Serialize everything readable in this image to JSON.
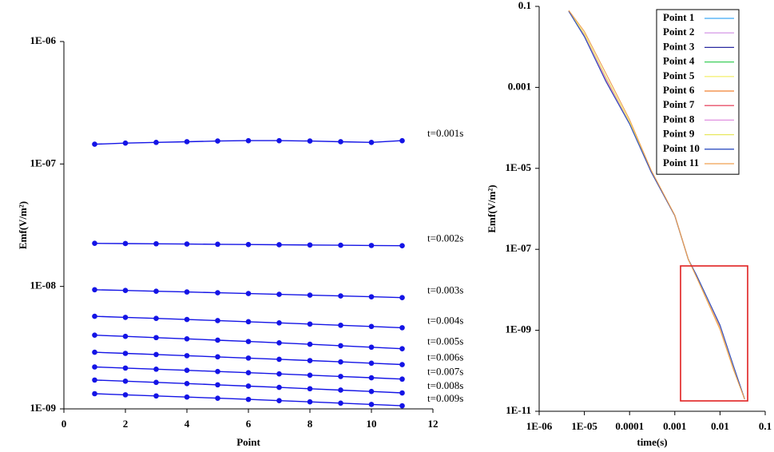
{
  "chart_data": [
    {
      "type": "line",
      "y_label": "Emf(V/m²)",
      "x_label": "Point",
      "ylog": true,
      "color": "#1414e6",
      "markers": true,
      "x": [
        1,
        2,
        3,
        4,
        5,
        6,
        7,
        8,
        9,
        10,
        11
      ],
      "xlim": [
        0,
        12
      ],
      "xticks": [
        0,
        2,
        4,
        6,
        8,
        10,
        12
      ],
      "ylim": [
        1e-09,
        1e-06
      ],
      "yticks": [
        {
          "value": 1e-09,
          "label": "1E-09"
        },
        {
          "value": 1e-08,
          "label": "1E-08"
        },
        {
          "value": 1e-07,
          "label": "1E-07"
        },
        {
          "value": 1e-06,
          "label": "1E-06"
        }
      ],
      "series": [
        {
          "name": "t=0.001s",
          "values": [
            1.45e-07,
            1.48e-07,
            1.5e-07,
            1.52e-07,
            1.54e-07,
            1.55e-07,
            1.55e-07,
            1.54e-07,
            1.52e-07,
            1.5e-07,
            1.55e-07
          ]
        },
        {
          "name": "t=0.002s",
          "values": [
            2.25e-08,
            2.24e-08,
            2.23e-08,
            2.22e-08,
            2.21e-08,
            2.2e-08,
            2.19e-08,
            2.18e-08,
            2.17e-08,
            2.16e-08,
            2.15e-08
          ]
        },
        {
          "name": "t=0.003s",
          "values": [
            9.4e-09,
            9.27e-09,
            9.14e-09,
            9.01e-09,
            8.88e-09,
            8.75e-09,
            8.62e-09,
            8.49e-09,
            8.36e-09,
            8.23e-09,
            8.1e-09
          ]
        },
        {
          "name": "t=0.004s",
          "values": [
            5.7e-09,
            5.59e-09,
            5.48e-09,
            5.37e-09,
            5.26e-09,
            5.15e-09,
            5.04e-09,
            4.93e-09,
            4.82e-09,
            4.71e-09,
            4.6e-09
          ]
        },
        {
          "name": "t=0.005s",
          "values": [
            4e-09,
            3.91e-09,
            3.82e-09,
            3.73e-09,
            3.64e-09,
            3.55e-09,
            3.46e-09,
            3.37e-09,
            3.28e-09,
            3.19e-09,
            3.1e-09
          ]
        },
        {
          "name": "t=0.006s",
          "values": [
            2.9e-09,
            2.84e-09,
            2.78e-09,
            2.72e-09,
            2.66e-09,
            2.6e-09,
            2.54e-09,
            2.48e-09,
            2.42e-09,
            2.36e-09,
            2.3e-09
          ]
        },
        {
          "name": "t=0.007s",
          "values": [
            2.2e-09,
            2.155e-09,
            2.11e-09,
            2.065e-09,
            2.02e-09,
            1.975e-09,
            1.93e-09,
            1.885e-09,
            1.84e-09,
            1.795e-09,
            1.75e-09
          ]
        },
        {
          "name": "t=0.008s",
          "values": [
            1.72e-09,
            1.683e-09,
            1.646e-09,
            1.609e-09,
            1.572e-09,
            1.535e-09,
            1.498e-09,
            1.461e-09,
            1.424e-09,
            1.387e-09,
            1.35e-09
          ]
        },
        {
          "name": "t=0.009s",
          "values": [
            1.33e-09,
            1.303e-09,
            1.276e-09,
            1.249e-09,
            1.222e-09,
            1.195e-09,
            1.168e-09,
            1.141e-09,
            1.114e-09,
            1.087e-09,
            1.06e-09
          ]
        }
      ]
    },
    {
      "type": "line",
      "y_label": "Emf(V/m²)",
      "x_label": "time(s)",
      "xlog": true,
      "ylog": true,
      "legend": "top-right",
      "x": [
        4.5e-06,
        1e-05,
        3e-05,
        0.0001,
        0.0003,
        0.001,
        0.002,
        0.003,
        0.01,
        0.02,
        0.035
      ],
      "xlim": [
        1e-06,
        0.1
      ],
      "xticks": [
        {
          "value": 1e-06,
          "label": "1E-06"
        },
        {
          "value": 1e-05,
          "label": "1E-05"
        },
        0.0001,
        0.001,
        0.01,
        0.1
      ],
      "ylim": [
        1e-11,
        0.1
      ],
      "yticks": [
        {
          "value": 1e-11,
          "label": "1E-11"
        },
        {
          "value": 1e-09,
          "label": "1E-09"
        },
        {
          "value": 1e-07,
          "label": "1E-07"
        },
        {
          "value": 1e-05,
          "label": "1E-05"
        },
        0.001,
        0.1
      ],
      "series": [
        {
          "name": "Point 1",
          "color": "#3fa9f5",
          "values": [
            0.076,
            0.019,
            0.0015,
            0.00013,
            8.3e-06,
            6.8e-07,
            5.6e-08,
            2.2e-08,
            1.2e-09,
            1.2e-10,
            2e-11
          ]
        },
        {
          "name": "Point 2",
          "color": "#d8a0e8",
          "values": [
            0.076,
            0.019,
            0.0015,
            0.00013,
            8.3e-06,
            6.8e-07,
            5.6e-08,
            2.25e-08,
            1.25e-09,
            1.2e-10,
            2e-11
          ]
        },
        {
          "name": "Point 3",
          "color": "#2a2aa0",
          "values": [
            0.076,
            0.018,
            0.0014,
            0.000125,
            8.2e-06,
            6.8e-07,
            5.6e-08,
            2.3e-08,
            1.3e-09,
            1.25e-10,
            2e-11
          ]
        },
        {
          "name": "Point 4",
          "color": "#3ccf5a",
          "values": [
            0.076,
            0.019,
            0.0015,
            0.00013,
            8.3e-06,
            6.8e-07,
            5.6e-08,
            2.2e-08,
            1.2e-09,
            1.2e-10,
            2e-11
          ]
        },
        {
          "name": "Point 5",
          "color": "#f5f07a",
          "values": [
            0.076,
            0.019,
            0.0015,
            0.00013,
            8.3e-06,
            6.8e-07,
            5.6e-08,
            2.2e-08,
            1.2e-09,
            1.2e-10,
            2e-11
          ]
        },
        {
          "name": "Point 6",
          "color": "#f08030",
          "values": [
            0.076,
            0.019,
            0.0015,
            0.00013,
            8.3e-06,
            6.8e-07,
            5.6e-08,
            2.2e-08,
            1.2e-09,
            1.2e-10,
            2e-11
          ]
        },
        {
          "name": "Point 7",
          "color": "#e8506a",
          "values": [
            0.076,
            0.02,
            0.0016,
            0.000135,
            8.4e-06,
            6.8e-07,
            5.6e-08,
            2.2e-08,
            1.15e-09,
            1.15e-10,
            2e-11
          ]
        },
        {
          "name": "Point 8",
          "color": "#e090e0",
          "values": [
            0.076,
            0.02,
            0.0016,
            0.000135,
            8.4e-06,
            6.8e-07,
            5.6e-08,
            2.2e-08,
            1.15e-09,
            1.15e-10,
            2e-11
          ]
        },
        {
          "name": "Point 9",
          "color": "#e8e860",
          "values": [
            0.076,
            0.021,
            0.0018,
            0.00014,
            8.5e-06,
            6.8e-07,
            5.6e-08,
            2.15e-08,
            1.1e-09,
            1.1e-10,
            2e-11
          ]
        },
        {
          "name": "Point 10",
          "color": "#3050c0",
          "values": [
            0.076,
            0.018,
            0.0014,
            0.000125,
            8.2e-06,
            6.8e-07,
            5.6e-08,
            2.35e-08,
            1.35e-09,
            1.3e-10,
            2e-11
          ]
        },
        {
          "name": "Point 11",
          "color": "#f0a050",
          "values": [
            0.08,
            0.024,
            0.0022,
            0.00016,
            9e-06,
            7e-07,
            5.6e-08,
            2.1e-08,
            1.05e-09,
            1.05e-10,
            2e-11
          ]
        }
      ]
    }
  ]
}
